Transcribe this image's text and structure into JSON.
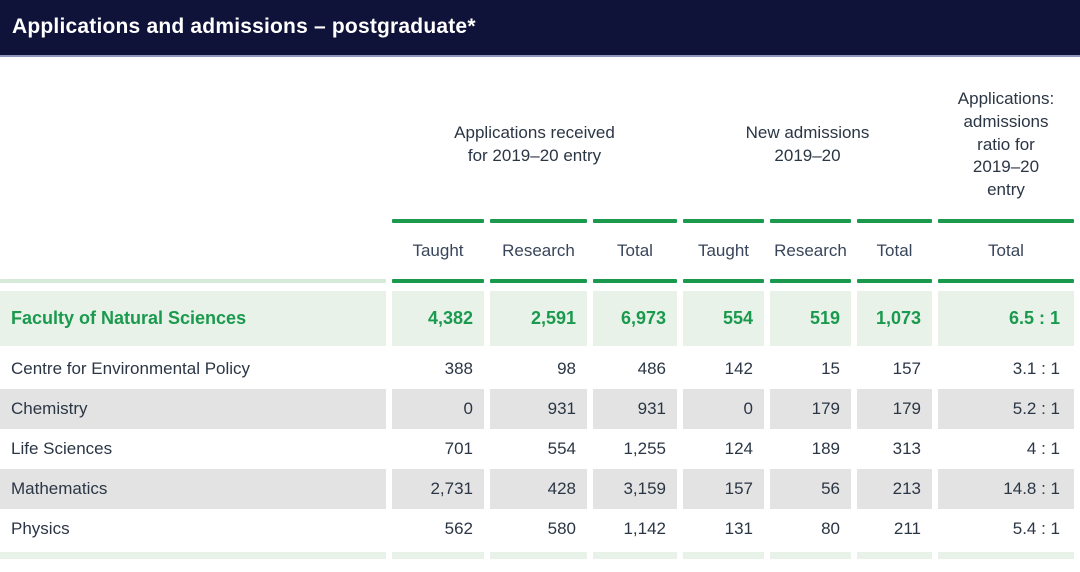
{
  "title": "Applications and admissions – postgraduate*",
  "table": {
    "groups": [
      {
        "label": "Applications received\nfor 2019–20 entry"
      },
      {
        "label": "New admissions\n2019–20"
      },
      {
        "label": "Applications:\nadmissions\nratio for\n2019–20\nentry"
      }
    ],
    "columns": [
      "Taught",
      "Research",
      "Total",
      "Taught",
      "Research",
      "Total",
      "Total"
    ],
    "rows": [
      {
        "label": "Faculty of Natural Sciences",
        "highlight": true,
        "values": [
          "4,382",
          "2,591",
          "6,973",
          "554",
          "519",
          "1,073",
          "6.5 : 1"
        ]
      },
      {
        "label": "Centre for Environmental Policy",
        "highlight": false,
        "values": [
          "388",
          "98",
          "486",
          "142",
          "15",
          "157",
          "3.1 : 1"
        ]
      },
      {
        "label": "Chemistry",
        "highlight": false,
        "values": [
          "0",
          "931",
          "931",
          "0",
          "179",
          "179",
          "5.2 : 1"
        ]
      },
      {
        "label": "Life Sciences",
        "highlight": false,
        "values": [
          "701",
          "554",
          "1,255",
          "124",
          "189",
          "313",
          "4 : 1"
        ]
      },
      {
        "label": "Mathematics",
        "highlight": false,
        "values": [
          "2,731",
          "428",
          "3,159",
          "157",
          "56",
          "213",
          "14.8 : 1"
        ]
      },
      {
        "label": "Physics",
        "highlight": false,
        "values": [
          "562",
          "580",
          "1,142",
          "131",
          "80",
          "211",
          "5.4 : 1"
        ]
      }
    ]
  },
  "colors": {
    "header_bar": "#101339",
    "accent_green": "#1b9a4e",
    "highlight_row_bg": "#e9f2e8",
    "alt_row_bg": "#e3e3e3",
    "text": "#2b3645"
  }
}
